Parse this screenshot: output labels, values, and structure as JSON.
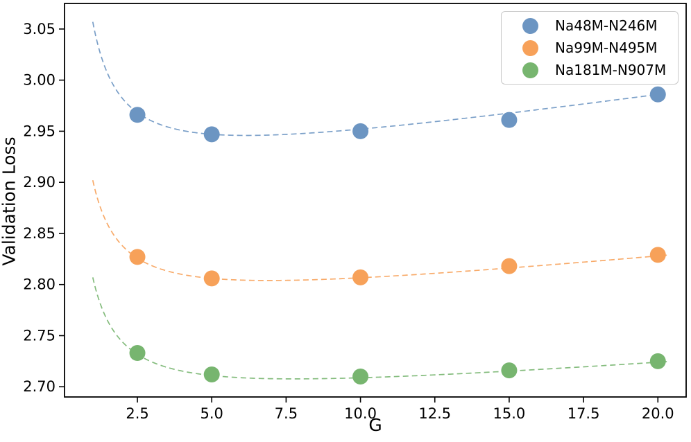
{
  "figure": {
    "xlabel": "G",
    "ylabel": "Validation Loss",
    "background_color": "#ffffff",
    "spine_color": "#000000",
    "tick_label_color": "#000000"
  },
  "chart_data": {
    "type": "scatter",
    "title": "",
    "xlabel": "G",
    "ylabel": "Validation Loss",
    "xlim": [
      0.05,
      20.95
    ],
    "ylim": [
      2.69,
      3.075
    ],
    "x_ticks": [
      2.5,
      5.0,
      7.5,
      10.0,
      12.5,
      15.0,
      17.5,
      20.0
    ],
    "y_ticks": [
      2.7,
      2.75,
      2.8,
      2.85,
      2.9,
      2.95,
      3.0,
      3.05
    ],
    "grid": false,
    "legend_position": "upper right",
    "x": [
      2.5,
      5.0,
      10.0,
      15.0,
      20.0
    ],
    "series": [
      {
        "name": "Na48M-N246M",
        "color": "#6c95c2",
        "values": [
          2.966,
          2.947,
          2.95,
          2.961,
          2.986
        ],
        "fit_curve": {
          "model": "a + b/G + c*G",
          "a": 2.8944,
          "b": 0.15842,
          "c": 0.004184,
          "g_start": 1.0,
          "g_end": 20.3,
          "style": "dashed"
        }
      },
      {
        "name": "Na99M-N495M",
        "color": "#f7a159",
        "values": [
          2.827,
          2.806,
          2.807,
          2.818,
          2.829
        ],
        "fit_curve": {
          "model": "a + b/G + c*G",
          "a": 2.76516,
          "b": 0.134035,
          "c": 0.002807,
          "g_start": 1.0,
          "g_end": 20.3,
          "style": "dashed"
        }
      },
      {
        "name": "Na181M-N907M",
        "color": "#77b56f",
        "values": [
          2.733,
          2.712,
          2.71,
          2.716,
          2.725
        ],
        "fit_curve": {
          "model": "a + b/G + c*G",
          "a": 2.67395,
          "b": 0.130878,
          "c": 0.0021755,
          "g_start": 1.0,
          "g_end": 20.3,
          "style": "dashed"
        }
      }
    ]
  }
}
